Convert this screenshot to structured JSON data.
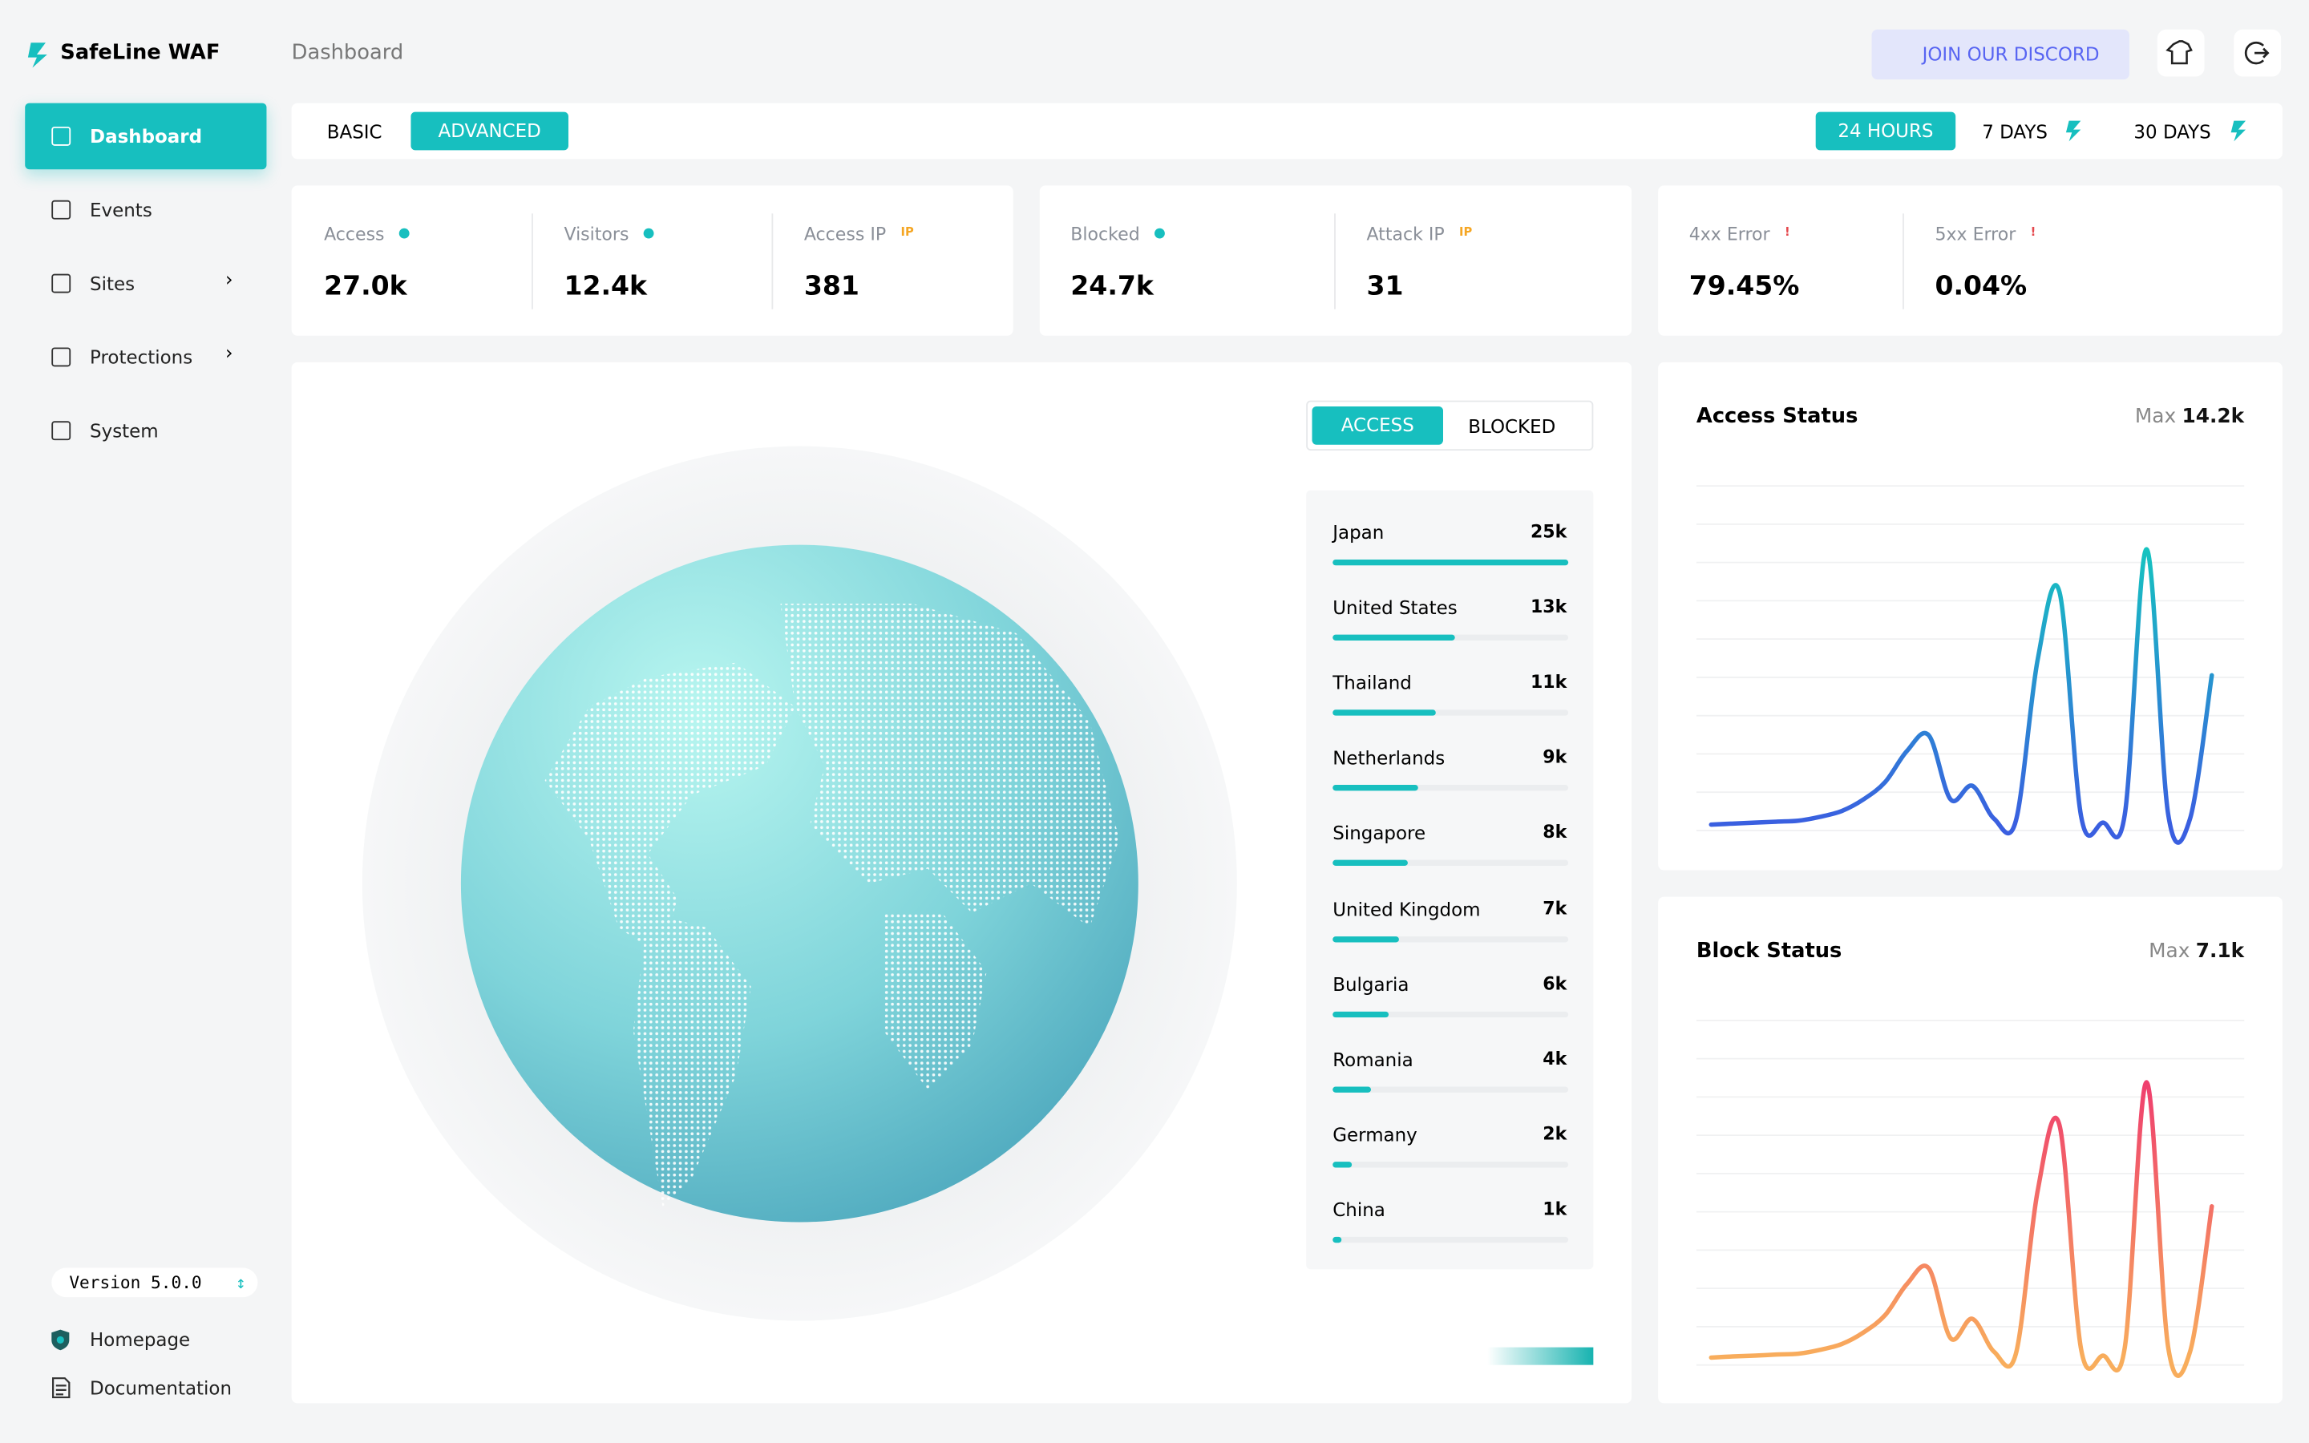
{
  "brand": "SafeLine WAF",
  "page_title": "Dashboard",
  "discord": "JOIN OUR DISCORD",
  "nav": [
    "Dashboard",
    "Events",
    "Sites",
    "Protections",
    "System"
  ],
  "version": "Version 5.0.0",
  "footer_links": [
    "Homepage",
    "Documentation"
  ],
  "mode_tabs": [
    "BASIC",
    "ADVANCED"
  ],
  "range_tabs": [
    "24 HOURS",
    "7 DAYS",
    "30 DAYS"
  ],
  "stat_cards": [
    [
      {
        "label": "Access",
        "value": "27.0k"
      },
      {
        "label": "Visitors",
        "value": "12.4k"
      },
      {
        "label": "Access IP",
        "badge": "IP",
        "value": "381"
      }
    ],
    [
      {
        "label": "Blocked",
        "value": "24.7k"
      },
      {
        "label": "Attack IP",
        "badge": "IP",
        "value": "31"
      }
    ],
    [
      {
        "label": "4xx Error",
        "badge": "!",
        "value": "79.45%"
      },
      {
        "label": "5xx Error",
        "badge": "!",
        "value": "0.04%"
      }
    ]
  ],
  "map_tabs": [
    "ACCESS",
    "BLOCKED"
  ],
  "countries": [
    {
      "name": "Japan",
      "value": 25000,
      "label": "25k"
    },
    {
      "name": "United States",
      "value": 13000,
      "label": "13k"
    },
    {
      "name": "Thailand",
      "value": 11000,
      "label": "11k"
    },
    {
      "name": "Netherlands",
      "value": 9000,
      "label": "9k"
    },
    {
      "name": "Singapore",
      "value": 8000,
      "label": "8k"
    },
    {
      "name": "United Kingdom",
      "value": 7000,
      "label": "7k"
    },
    {
      "name": "Bulgaria",
      "value": 6000,
      "label": "6k"
    },
    {
      "name": "Romania",
      "value": 4000,
      "label": "4k"
    },
    {
      "name": "Germany",
      "value": 2000,
      "label": "2k"
    },
    {
      "name": "China",
      "value": 1000,
      "label": "1k"
    }
  ],
  "access_status": {
    "title": "Access Status",
    "max_prefix": "Max",
    "max": {
      "value": 14200,
      "label": "14.2k"
    },
    "values": [
      0,
      50,
      100,
      150,
      200,
      400,
      700,
      1300,
      2200,
      3800,
      4600,
      1300,
      2000,
      300,
      200,
      8500,
      12000,
      400,
      100,
      500,
      14200,
      500,
      300,
      7700
    ]
  },
  "block_status": {
    "title": "Block Status",
    "max_prefix": "Max",
    "max": {
      "value": 7100,
      "label": "7.1k"
    },
    "values": [
      0,
      30,
      50,
      80,
      100,
      200,
      350,
      650,
      1100,
      1900,
      2300,
      500,
      1000,
      150,
      100,
      4300,
      6000,
      200,
      50,
      250,
      7100,
      250,
      150,
      3900
    ]
  }
}
